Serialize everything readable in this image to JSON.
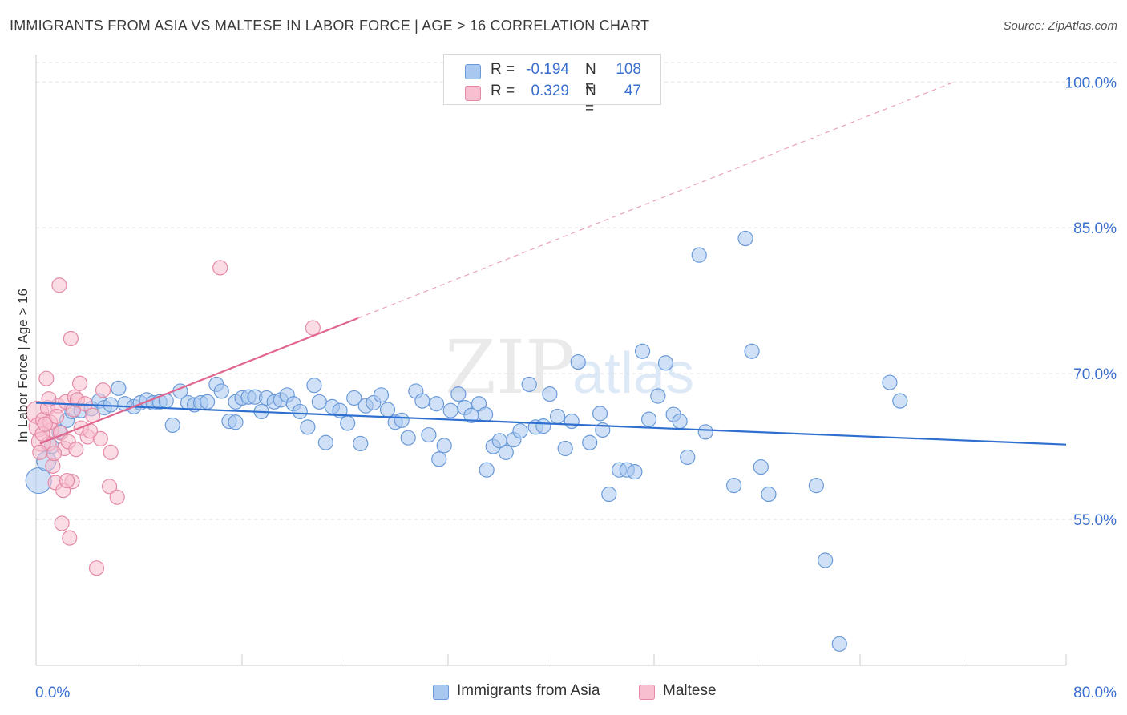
{
  "title": "IMMIGRANTS FROM ASIA VS MALTESE IN LABOR FORCE | AGE > 16 CORRELATION CHART",
  "source": "Source: ZipAtlas.com",
  "watermark": {
    "zip": "ZIP",
    "atlas": "atlas"
  },
  "legend": {
    "rows": [
      {
        "r_label": "R =",
        "r_value": "-0.194",
        "n_label": "N =",
        "n_value": "108",
        "color": "#a9c8f0",
        "border": "#6a9ad8"
      },
      {
        "r_label": "R =",
        "r_value": "0.329",
        "n_label": "N =",
        "n_value": "47",
        "color": "#f7bfd0",
        "border": "#e48aa6"
      }
    ]
  },
  "bottom_legend": [
    {
      "label": "Immigrants from Asia",
      "color": "#a9c8f0",
      "border": "#6a9ad8"
    },
    {
      "label": "Maltese",
      "color": "#f7bfd0",
      "border": "#e48aa6"
    }
  ],
  "chart_data": {
    "type": "scatter",
    "title": "IMMIGRANTS FROM ASIA VS MALTESE IN LABOR FORCE | AGE > 16 CORRELATION CHART",
    "ylabel": "In Labor Force | Age > 16",
    "xlabel": "",
    "xlim": [
      0,
      80
    ],
    "ylim": [
      40,
      102
    ],
    "x_tick_labels": [
      "0.0%",
      "80.0%"
    ],
    "y_ticks": [
      55,
      70,
      85,
      100
    ],
    "y_tick_labels": [
      "55.0%",
      "70.0%",
      "85.0%",
      "100.0%"
    ],
    "grid": true,
    "series": [
      {
        "name": "Immigrants from Asia",
        "color": "#a9c8f0",
        "stroke": "#6a9ad8",
        "trend": {
          "x0": 0,
          "y0": 67.0,
          "x1": 80,
          "y1": 62.7,
          "color": "#2f6fcf"
        },
        "points": [
          [
            0.2,
            59.0,
            16
          ],
          [
            0.8,
            61.0,
            12
          ],
          [
            1.2,
            62.5,
            9
          ],
          [
            1.8,
            64.0,
            9
          ],
          [
            2.4,
            65.2,
            9
          ],
          [
            2.8,
            66.1,
            9
          ],
          [
            3.5,
            66.2,
            9
          ],
          [
            4.3,
            66.4,
            9
          ],
          [
            4.9,
            67.2,
            9
          ],
          [
            5.3,
            66.5,
            9
          ],
          [
            5.8,
            66.8,
            9
          ],
          [
            6.4,
            68.5,
            9
          ],
          [
            6.9,
            66.9,
            9
          ],
          [
            7.6,
            66.6,
            9
          ],
          [
            8.1,
            67.0,
            9
          ],
          [
            8.6,
            67.3,
            9
          ],
          [
            9.1,
            67.0,
            9
          ],
          [
            9.6,
            67.1,
            9
          ],
          [
            10.1,
            67.2,
            9
          ],
          [
            10.6,
            64.7,
            9
          ],
          [
            11.2,
            68.2,
            9
          ],
          [
            11.8,
            67.0,
            9
          ],
          [
            12.3,
            66.8,
            9
          ],
          [
            12.8,
            67.0,
            9
          ],
          [
            13.3,
            67.1,
            9
          ],
          [
            14.0,
            68.9,
            9
          ],
          [
            14.4,
            68.2,
            9
          ],
          [
            15.0,
            65.1,
            9
          ],
          [
            15.5,
            67.1,
            9
          ],
          [
            16.0,
            67.5,
            9
          ],
          [
            16.5,
            67.6,
            9
          ],
          [
            17.0,
            67.6,
            9
          ],
          [
            17.5,
            66.1,
            9
          ],
          [
            17.9,
            67.5,
            9
          ],
          [
            18.5,
            67.1,
            9
          ],
          [
            19.0,
            67.3,
            9
          ],
          [
            19.5,
            67.8,
            9
          ],
          [
            20.0,
            66.9,
            9
          ],
          [
            20.5,
            66.1,
            9
          ],
          [
            21.1,
            64.5,
            9
          ],
          [
            21.6,
            68.8,
            9
          ],
          [
            22.0,
            67.1,
            9
          ],
          [
            22.5,
            62.9,
            9
          ],
          [
            23.0,
            66.6,
            9
          ],
          [
            23.6,
            66.2,
            9
          ],
          [
            24.2,
            64.9,
            9
          ],
          [
            24.7,
            67.5,
            9
          ],
          [
            25.2,
            62.8,
            9
          ],
          [
            25.6,
            66.7,
            9
          ],
          [
            26.2,
            67.0,
            9
          ],
          [
            26.8,
            67.8,
            9
          ],
          [
            27.3,
            66.3,
            9
          ],
          [
            27.9,
            65.0,
            9
          ],
          [
            28.4,
            65.2,
            9
          ],
          [
            28.9,
            63.4,
            9
          ],
          [
            29.5,
            68.2,
            9
          ],
          [
            30.0,
            67.2,
            9
          ],
          [
            30.5,
            63.7,
            9
          ],
          [
            31.1,
            66.9,
            9
          ],
          [
            31.7,
            62.6,
            9
          ],
          [
            32.2,
            66.2,
            9
          ],
          [
            32.8,
            67.9,
            9
          ],
          [
            33.3,
            66.5,
            9
          ],
          [
            33.8,
            65.7,
            9
          ],
          [
            34.4,
            66.9,
            9
          ],
          [
            34.9,
            65.8,
            9
          ],
          [
            35.5,
            62.5,
            9
          ],
          [
            36.0,
            63.1,
            9
          ],
          [
            36.5,
            61.9,
            9
          ],
          [
            37.1,
            63.2,
            9
          ],
          [
            37.6,
            64.1,
            9
          ],
          [
            38.3,
            68.9,
            9
          ],
          [
            38.8,
            64.5,
            9
          ],
          [
            39.4,
            64.6,
            9
          ],
          [
            39.9,
            67.9,
            9
          ],
          [
            40.5,
            65.6,
            9
          ],
          [
            41.1,
            62.3,
            9
          ],
          [
            41.6,
            65.1,
            9
          ],
          [
            42.1,
            71.2,
            9
          ],
          [
            43.0,
            62.9,
            9
          ],
          [
            43.8,
            65.9,
            9
          ],
          [
            44.0,
            64.2,
            9
          ],
          [
            44.5,
            57.6,
            9
          ],
          [
            45.3,
            60.1,
            9
          ],
          [
            45.9,
            60.1,
            9
          ],
          [
            46.5,
            59.9,
            9
          ],
          [
            47.1,
            72.3,
            9
          ],
          [
            47.6,
            65.3,
            9
          ],
          [
            48.3,
            67.7,
            9
          ],
          [
            48.9,
            71.1,
            9
          ],
          [
            49.5,
            65.8,
            9
          ],
          [
            50.0,
            65.1,
            9
          ],
          [
            50.6,
            61.4,
            9
          ],
          [
            51.5,
            82.2,
            9
          ],
          [
            52.0,
            64.0,
            9
          ],
          [
            54.2,
            58.5,
            9
          ],
          [
            55.1,
            83.9,
            9
          ],
          [
            55.6,
            72.3,
            9
          ],
          [
            56.3,
            60.4,
            9
          ],
          [
            56.9,
            57.6,
            9
          ],
          [
            60.6,
            58.5,
            9
          ],
          [
            61.3,
            50.8,
            9
          ],
          [
            62.4,
            42.2,
            9
          ],
          [
            66.3,
            69.1,
            9
          ],
          [
            67.1,
            67.2,
            9
          ],
          [
            15.5,
            65.0,
            9
          ],
          [
            31.3,
            61.2,
            9
          ],
          [
            35.0,
            60.1,
            9
          ]
        ]
      },
      {
        "name": "Maltese",
        "color": "#f7bfd0",
        "stroke": "#e48aa6",
        "trend": {
          "x0": 0.3,
          "y0": 62.8,
          "x1": 25,
          "y1": 75.7,
          "dash_x1": 71.3,
          "dash_y1": 100.0,
          "color": "#e0668f"
        },
        "points": [
          [
            0.1,
            66.0,
            14
          ],
          [
            0.2,
            64.5,
            12
          ],
          [
            0.4,
            63.0,
            12
          ],
          [
            0.6,
            65.2,
            10
          ],
          [
            0.8,
            69.5,
            9
          ],
          [
            1.0,
            62.8,
            9
          ],
          [
            1.2,
            64.2,
            9
          ],
          [
            1.3,
            60.5,
            9
          ],
          [
            1.5,
            58.8,
            9
          ],
          [
            1.7,
            66.7,
            9
          ],
          [
            1.8,
            79.1,
            9
          ],
          [
            1.9,
            63.9,
            9
          ],
          [
            2.0,
            54.6,
            9
          ],
          [
            2.2,
            62.3,
            9
          ],
          [
            2.3,
            67.1,
            9
          ],
          [
            2.5,
            63.0,
            9
          ],
          [
            2.6,
            53.1,
            9
          ],
          [
            2.7,
            73.6,
            9
          ],
          [
            2.8,
            58.9,
            9
          ],
          [
            2.9,
            66.3,
            9
          ],
          [
            3.0,
            67.6,
            9
          ],
          [
            3.2,
            67.3,
            9
          ],
          [
            3.4,
            69.0,
            9
          ],
          [
            3.5,
            64.4,
            9
          ],
          [
            3.8,
            66.9,
            9
          ],
          [
            4.0,
            63.5,
            9
          ],
          [
            4.4,
            65.7,
            9
          ],
          [
            4.7,
            50.0,
            9
          ],
          [
            5.0,
            63.3,
            9
          ],
          [
            5.2,
            68.3,
            9
          ],
          [
            5.8,
            61.9,
            9
          ],
          [
            5.7,
            58.4,
            9
          ],
          [
            6.3,
            57.3,
            9
          ],
          [
            14.3,
            80.9,
            9
          ],
          [
            21.5,
            74.7,
            9
          ],
          [
            1.1,
            65.0,
            9
          ],
          [
            0.9,
            66.5,
            9
          ],
          [
            1.4,
            61.8,
            9
          ],
          [
            2.1,
            58.0,
            9
          ],
          [
            2.4,
            59.0,
            9
          ],
          [
            0.5,
            63.8,
            9
          ],
          [
            0.7,
            64.8,
            9
          ],
          [
            1.6,
            65.6,
            9
          ],
          [
            3.1,
            62.2,
            9
          ],
          [
            1.0,
            67.4,
            9
          ],
          [
            0.3,
            61.9,
            9
          ],
          [
            4.2,
            64.1,
            9
          ]
        ]
      }
    ]
  }
}
